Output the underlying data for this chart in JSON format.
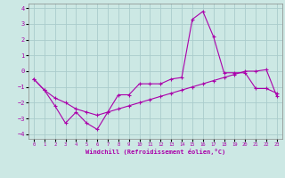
{
  "xlabel": "Windchill (Refroidissement éolien,°C)",
  "xlim": [
    -0.5,
    23.5
  ],
  "ylim": [
    -4.3,
    4.3
  ],
  "yticks": [
    -4,
    -3,
    -2,
    -1,
    0,
    1,
    2,
    3,
    4
  ],
  "xticks": [
    0,
    1,
    2,
    3,
    4,
    5,
    6,
    7,
    8,
    9,
    10,
    11,
    12,
    13,
    14,
    15,
    16,
    17,
    18,
    19,
    20,
    21,
    22,
    23
  ],
  "background_color": "#cce8e4",
  "grid_color": "#aacccc",
  "line_color": "#aa00aa",
  "line1_x": [
    0,
    1,
    2,
    3,
    4,
    5,
    6,
    7,
    8,
    9,
    10,
    11,
    12,
    13,
    14,
    15,
    16,
    17,
    18,
    19,
    20,
    21,
    22,
    23
  ],
  "line1_y": [
    -0.5,
    -1.2,
    -2.2,
    -3.3,
    -2.6,
    -3.3,
    -3.7,
    -2.6,
    -1.5,
    -1.5,
    -0.8,
    -0.8,
    -0.8,
    -0.5,
    -0.4,
    3.3,
    3.8,
    2.2,
    -0.1,
    -0.1,
    -0.1,
    -1.1,
    -1.1,
    -1.4
  ],
  "line2_x": [
    0,
    1,
    2,
    3,
    4,
    5,
    6,
    7,
    8,
    9,
    10,
    11,
    12,
    13,
    14,
    15,
    16,
    17,
    18,
    19,
    20,
    21,
    22,
    23
  ],
  "line2_y": [
    -0.5,
    -1.2,
    -1.7,
    -2.0,
    -2.4,
    -2.6,
    -2.8,
    -2.6,
    -2.4,
    -2.2,
    -2.0,
    -1.8,
    -1.6,
    -1.4,
    -1.2,
    -1.0,
    -0.8,
    -0.6,
    -0.4,
    -0.2,
    0.0,
    0.0,
    0.1,
    -1.6
  ]
}
